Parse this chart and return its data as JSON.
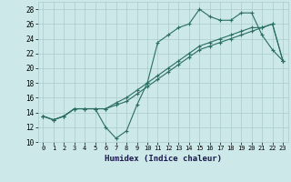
{
  "xlabel": "Humidex (Indice chaleur)",
  "bg_color": "#cce8e8",
  "grid_color": "#aacccc",
  "line_color": "#2a6e64",
  "xlim": [
    -0.5,
    23.5
  ],
  "ylim": [
    10,
    29
  ],
  "xticks": [
    0,
    1,
    2,
    3,
    4,
    5,
    6,
    7,
    8,
    9,
    10,
    11,
    12,
    13,
    14,
    15,
    16,
    17,
    18,
    19,
    20,
    21,
    22,
    23
  ],
  "yticks": [
    10,
    12,
    14,
    16,
    18,
    20,
    22,
    24,
    26,
    28
  ],
  "line1_x": [
    0,
    1,
    2,
    3,
    4,
    5,
    6,
    7,
    8,
    9,
    10,
    11,
    12,
    13,
    14,
    15,
    16,
    17,
    18,
    19,
    20,
    21,
    22,
    23
  ],
  "line1_y": [
    13.5,
    13.0,
    13.5,
    14.5,
    14.5,
    14.5,
    12.0,
    10.5,
    11.5,
    15.0,
    18.0,
    23.5,
    24.5,
    25.5,
    26.0,
    28.0,
    27.0,
    26.5,
    26.5,
    27.5,
    27.5,
    24.5,
    22.5,
    21.0
  ],
  "line2_x": [
    0,
    1,
    2,
    3,
    4,
    5,
    6,
    7,
    8,
    9,
    10,
    11,
    12,
    13,
    14,
    15,
    16,
    17,
    18,
    19,
    20,
    21,
    22,
    23
  ],
  "line2_y": [
    13.5,
    13.0,
    13.5,
    14.5,
    14.5,
    14.5,
    14.5,
    15.0,
    15.5,
    16.5,
    17.5,
    18.5,
    19.5,
    20.5,
    21.5,
    22.5,
    23.0,
    23.5,
    24.0,
    24.5,
    25.0,
    25.5,
    26.0,
    21.0
  ],
  "line3_x": [
    0,
    1,
    2,
    3,
    4,
    5,
    6,
    7,
    8,
    9,
    10,
    11,
    12,
    13,
    14,
    15,
    16,
    17,
    18,
    19,
    20,
    21,
    22,
    23
  ],
  "line3_y": [
    13.5,
    13.0,
    13.5,
    14.5,
    14.5,
    14.5,
    14.5,
    15.3,
    16.0,
    17.0,
    18.0,
    19.0,
    20.0,
    21.0,
    22.0,
    23.0,
    23.5,
    24.0,
    24.5,
    25.0,
    25.5,
    25.5,
    26.0,
    21.0
  ]
}
